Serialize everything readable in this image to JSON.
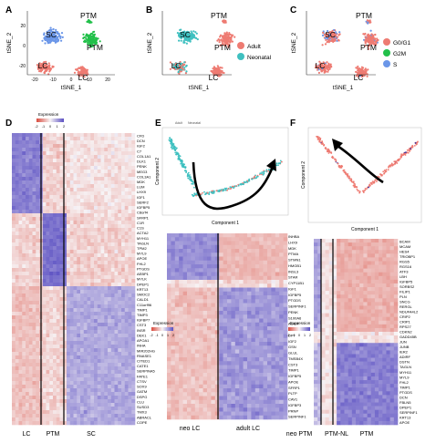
{
  "panel_letters": [
    "A",
    "B",
    "C",
    "D",
    "E",
    "F"
  ],
  "tsne": {
    "xlabel": "tSNE_1",
    "ylabel": "tSNE_2",
    "xticks": [
      "-20",
      "-10",
      "0",
      "10",
      "20"
    ],
    "yticks": [
      "20",
      "0",
      "-20"
    ],
    "cluster_labels": [
      "SC",
      "PTM",
      "LC",
      "LC",
      "PTM"
    ]
  },
  "legend_b": [
    "Adult",
    "Neonatal"
  ],
  "legend_c": [
    "G0/G1",
    "G2M",
    "S"
  ],
  "colors": {
    "salmon": "#ee7b72",
    "teal": "#3fc0c0",
    "green": "#22c04a",
    "blue": "#6b96e8",
    "darkblue": "#3a2f9a",
    "heat_red": "#d94b3e",
    "heat_blue": "#5a4fc2"
  },
  "heatmap_d": {
    "legend_title": "Expression",
    "legend_ticks": [
      "-2",
      "-1",
      "0",
      "1",
      "2"
    ],
    "genes": [
      "CFD",
      "DCN",
      "IGF2",
      "C7",
      "COL1A1",
      "DLK1",
      "PENK",
      "MEG3",
      "COL3A1",
      "MDK",
      "LUM",
      "LHX9",
      "IGF1",
      "SERF2",
      "IGFBP5",
      "C8orf4",
      "SFRP1",
      "C1R",
      "C1S",
      "ACTA2",
      "MYH11",
      "TAGLN",
      "TPM2",
      "MYL9",
      "APOE",
      "FHL2",
      "PTGDS",
      "AEBP1",
      "MYLK",
      "DPEP1",
      "KRT13",
      "SMOC2",
      "CALD1",
      "C11orf96",
      "TIMP1",
      "TIMP3",
      "IGFBP7",
      "CST3",
      "INSR",
      "DEK1",
      "APOA1",
      "INHA",
      "MIR202HG",
      "RNASE1",
      "CITED1",
      "CATE1",
      "SERPINA5",
      "FATE1",
      "CTSV",
      "SOX9",
      "GATM",
      "DSPG",
      "CLU",
      "SUSD3",
      "TMX3",
      "ABRACL",
      "COPE"
    ],
    "groups": [
      "LC",
      "PTM",
      "SC"
    ]
  },
  "trajectory_e": {
    "legend": [
      "Adult",
      "Neonatal"
    ],
    "xlabel": "Component 1",
    "ylabel": "Component 2"
  },
  "heatmap_e": {
    "legend_title": "Expression",
    "legend_ticks": [
      "-2",
      "-1",
      "0",
      "1",
      "2"
    ],
    "genes": [
      "INHBA",
      "LHX9",
      "MDK",
      "PTMA",
      "STMN1",
      "HMGB1",
      "INSL3",
      "STAR",
      "CYP11B1",
      "IGF1",
      "IGFBP5",
      "PTGDS",
      "SERPINF1",
      "PENK",
      "S100A6",
      "AGRR",
      "LGALS3",
      "DPT",
      "IGF2",
      "GSN",
      "GLUL",
      "TMSB4X",
      "CST3",
      "TIMP1",
      "IGFBP5",
      "APOE",
      "SFRP1",
      "PLTP",
      "CAV1",
      "IGFBP3",
      "PRNP",
      "SERPINF1"
    ],
    "groups": [
      "neo LC",
      "adult LC"
    ]
  },
  "trajectory_f": {
    "xlabel": "Component 1",
    "ylabel": "Component 2"
  },
  "heatmap_f": {
    "legend_title": "Expression",
    "legend_ticks": [
      "-2",
      "-1",
      "0",
      "1",
      "2"
    ],
    "genes": [
      "BCAM",
      "MCAM",
      "HES4",
      "TRIOBP1",
      "RGS5",
      "RGS16",
      "ATF3",
      "LBH",
      "IGFBP5",
      "SORBS2",
      "FILIP1",
      "PLN",
      "SNCG",
      "RERGL",
      "NDUFA4L2",
      "CRIP2",
      "CRIP1",
      "RPS27",
      "CDKN2",
      "GADD45B",
      "JUN",
      "JUNB",
      "IER2",
      "ADIRF",
      "DSTN",
      "TAGLN",
      "MYH11",
      "MYL9",
      "FHL2",
      "TIMP1",
      "PTGDS",
      "DCN",
      "FBLN5",
      "DPEP1",
      "SERPINF1",
      "KRT13",
      "APOE"
    ],
    "groups": [
      "neo PTM",
      "PTM-NL",
      "PTM"
    ]
  },
  "chart_data": [
    {
      "type": "scatter",
      "panel": "A",
      "xlabel": "tSNE_1",
      "ylabel": "tSNE_2",
      "xlim": [
        -25,
        25
      ],
      "ylim": [
        -30,
        30
      ],
      "clusters": [
        {
          "name": "SC",
          "x": -15,
          "y": 14
        },
        {
          "name": "PTM",
          "x": 8,
          "y": 18
        },
        {
          "name": "PTM",
          "x": 12,
          "y": 6
        },
        {
          "name": "LC",
          "x": -14,
          "y": -10
        },
        {
          "name": "LC",
          "x": 6,
          "y": -14
        }
      ]
    },
    {
      "type": "scatter",
      "panel": "B",
      "xlabel": "tSNE_1",
      "ylabel": "tSNE_2",
      "series": [
        {
          "name": "Adult"
        },
        {
          "name": "Neonatal"
        }
      ]
    },
    {
      "type": "scatter",
      "panel": "C",
      "xlabel": "tSNE_1",
      "ylabel": "tSNE_2",
      "series": [
        {
          "name": "G0/G1"
        },
        {
          "name": "G2M"
        },
        {
          "name": "S"
        }
      ]
    },
    {
      "type": "heatmap",
      "panel": "D",
      "groups": [
        "LC",
        "PTM",
        "SC"
      ],
      "value_range": [
        -2,
        2
      ]
    },
    {
      "type": "heatmap",
      "panel": "E",
      "groups": [
        "neo LC",
        "adult LC"
      ],
      "value_range": [
        -2,
        2
      ]
    },
    {
      "type": "heatmap",
      "panel": "F",
      "groups": [
        "neo PTM",
        "PTM-NL",
        "PTM"
      ],
      "value_range": [
        -2,
        2
      ]
    }
  ]
}
